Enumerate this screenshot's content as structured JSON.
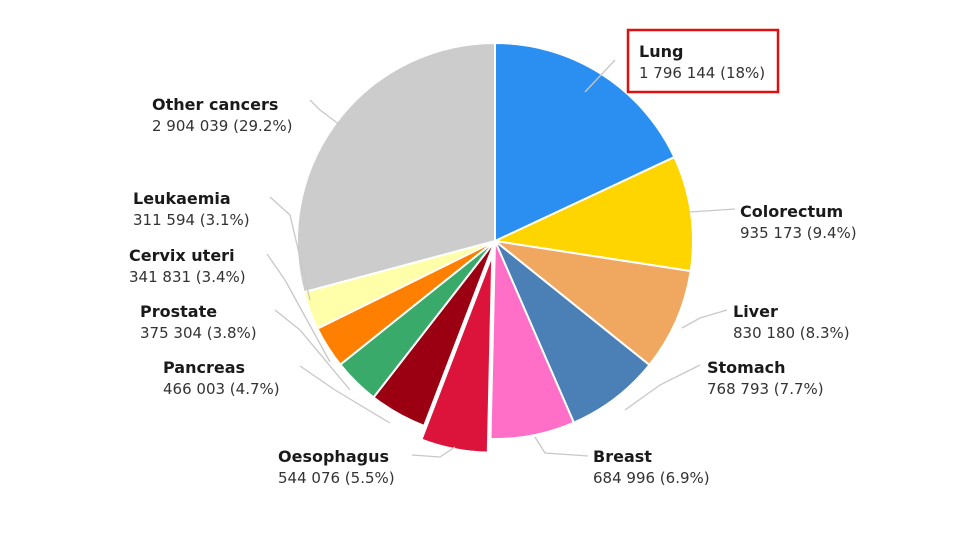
{
  "chart_data": {
    "type": "pie",
    "title": "",
    "start_angle_deg": 0,
    "direction": "clockwise",
    "legend": "none",
    "slices": [
      {
        "name": "Lung",
        "value": 1796144,
        "value_text": "1 796 144",
        "pct_text": "(18%)",
        "color": "#2b8ff2",
        "highlighted": true
      },
      {
        "name": "Colorectum",
        "value": 935173,
        "value_text": "935 173",
        "pct_text": "(9.4%)",
        "color": "#ffd500"
      },
      {
        "name": "Liver",
        "value": 830180,
        "value_text": "830 180",
        "pct_text": "(8.3%)",
        "color": "#f0a860"
      },
      {
        "name": "Stomach",
        "value": 768793,
        "value_text": "768 793",
        "pct_text": "(7.7%)",
        "color": "#4a80b5"
      },
      {
        "name": "Breast",
        "value": 684996,
        "value_text": "684 996",
        "pct_text": "(6.9%)",
        "color": "#ff6ec7"
      },
      {
        "name": "Oesophagus",
        "value": 544076,
        "value_text": "544 076",
        "pct_text": "(5.5%)",
        "color": "#dc143c",
        "exploded": true
      },
      {
        "name": "Pancreas",
        "value": 466003,
        "value_text": "466 003",
        "pct_text": "(4.7%)",
        "color": "#9b0012"
      },
      {
        "name": "Prostate",
        "value": 375304,
        "value_text": "375 304",
        "pct_text": "(3.8%)",
        "color": "#3aaa6a"
      },
      {
        "name": "Cervix uteri",
        "value": 341831,
        "value_text": "341 831",
        "pct_text": "(3.4%)",
        "color": "#ff8000"
      },
      {
        "name": "Leukaemia",
        "value": 311594,
        "value_text": "311 594",
        "pct_text": "(3.1%)",
        "color": "#ffffaa"
      },
      {
        "name": "Other cancers",
        "value": 2904039,
        "value_text": "2 904 039",
        "pct_text": "(29.2%)",
        "color": "#cccccc"
      }
    ]
  }
}
